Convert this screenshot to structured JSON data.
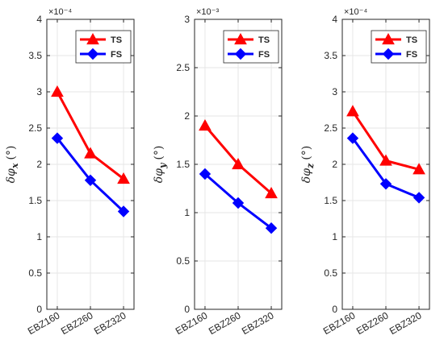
{
  "figure": {
    "background": "#ffffff"
  },
  "colors": {
    "TS": "#ff0000",
    "FS": "#0000ff",
    "grid": "#e6e6e6",
    "axis": "#262626"
  },
  "chart_data": [
    {
      "type": "line",
      "categories": [
        "EBZ160",
        "EBZ260",
        "EBZ320"
      ],
      "ylim": [
        0,
        4
      ],
      "yticks": [
        "0",
        "0.5",
        "1",
        "1.5",
        "2",
        "2.5",
        "3",
        "3.5",
        "4"
      ],
      "ytick_values": [
        0,
        0.5,
        1,
        1.5,
        2,
        2.5,
        3,
        3.5,
        4
      ],
      "exponent_label": "×10⁻⁴",
      "ylabel": {
        "delta": "δ",
        "phi": "φ",
        "subscript": "x",
        "unit": "(°)"
      },
      "grid": true,
      "legend_position": "top-right",
      "series": [
        {
          "name": "TS",
          "values": [
            3.0,
            2.15,
            1.8
          ],
          "marker": "triangle",
          "color": "#ff0000"
        },
        {
          "name": "FS",
          "values": [
            2.36,
            1.78,
            1.35
          ],
          "marker": "diamond",
          "color": "#0000ff"
        }
      ]
    },
    {
      "type": "line",
      "categories": [
        "EBZ160",
        "EBZ260",
        "EBZ320"
      ],
      "ylim": [
        0,
        3
      ],
      "yticks": [
        "0",
        "0.5",
        "1",
        "1.5",
        "2",
        "2.5",
        "3"
      ],
      "ytick_values": [
        0,
        0.5,
        1,
        1.5,
        2,
        2.5,
        3
      ],
      "exponent_label": "×10⁻³",
      "ylabel": {
        "delta": "δ",
        "phi": "φ",
        "subscript": "y",
        "unit": "(°)"
      },
      "grid": true,
      "legend_position": "top-right",
      "series": [
        {
          "name": "TS",
          "values": [
            1.9,
            1.5,
            1.2
          ],
          "marker": "triangle",
          "color": "#ff0000"
        },
        {
          "name": "FS",
          "values": [
            1.4,
            1.1,
            0.84
          ],
          "marker": "diamond",
          "color": "#0000ff"
        }
      ]
    },
    {
      "type": "line",
      "categories": [
        "EBZ160",
        "EBZ260",
        "EBZ320"
      ],
      "ylim": [
        0,
        4
      ],
      "yticks": [
        "0",
        "0.5",
        "1",
        "1.5",
        "2",
        "2.5",
        "3",
        "3.5",
        "4"
      ],
      "ytick_values": [
        0,
        0.5,
        1,
        1.5,
        2,
        2.5,
        3,
        3.5,
        4
      ],
      "exponent_label": "×10⁻⁴",
      "ylabel": {
        "delta": "δ",
        "phi": "φ",
        "subscript": "z",
        "unit": "(°)"
      },
      "grid": true,
      "legend_position": "top-right",
      "series": [
        {
          "name": "TS",
          "values": [
            2.73,
            2.05,
            1.93
          ],
          "marker": "triangle",
          "color": "#ff0000"
        },
        {
          "name": "FS",
          "values": [
            2.36,
            1.73,
            1.54
          ],
          "marker": "diamond",
          "color": "#0000ff"
        }
      ]
    }
  ]
}
